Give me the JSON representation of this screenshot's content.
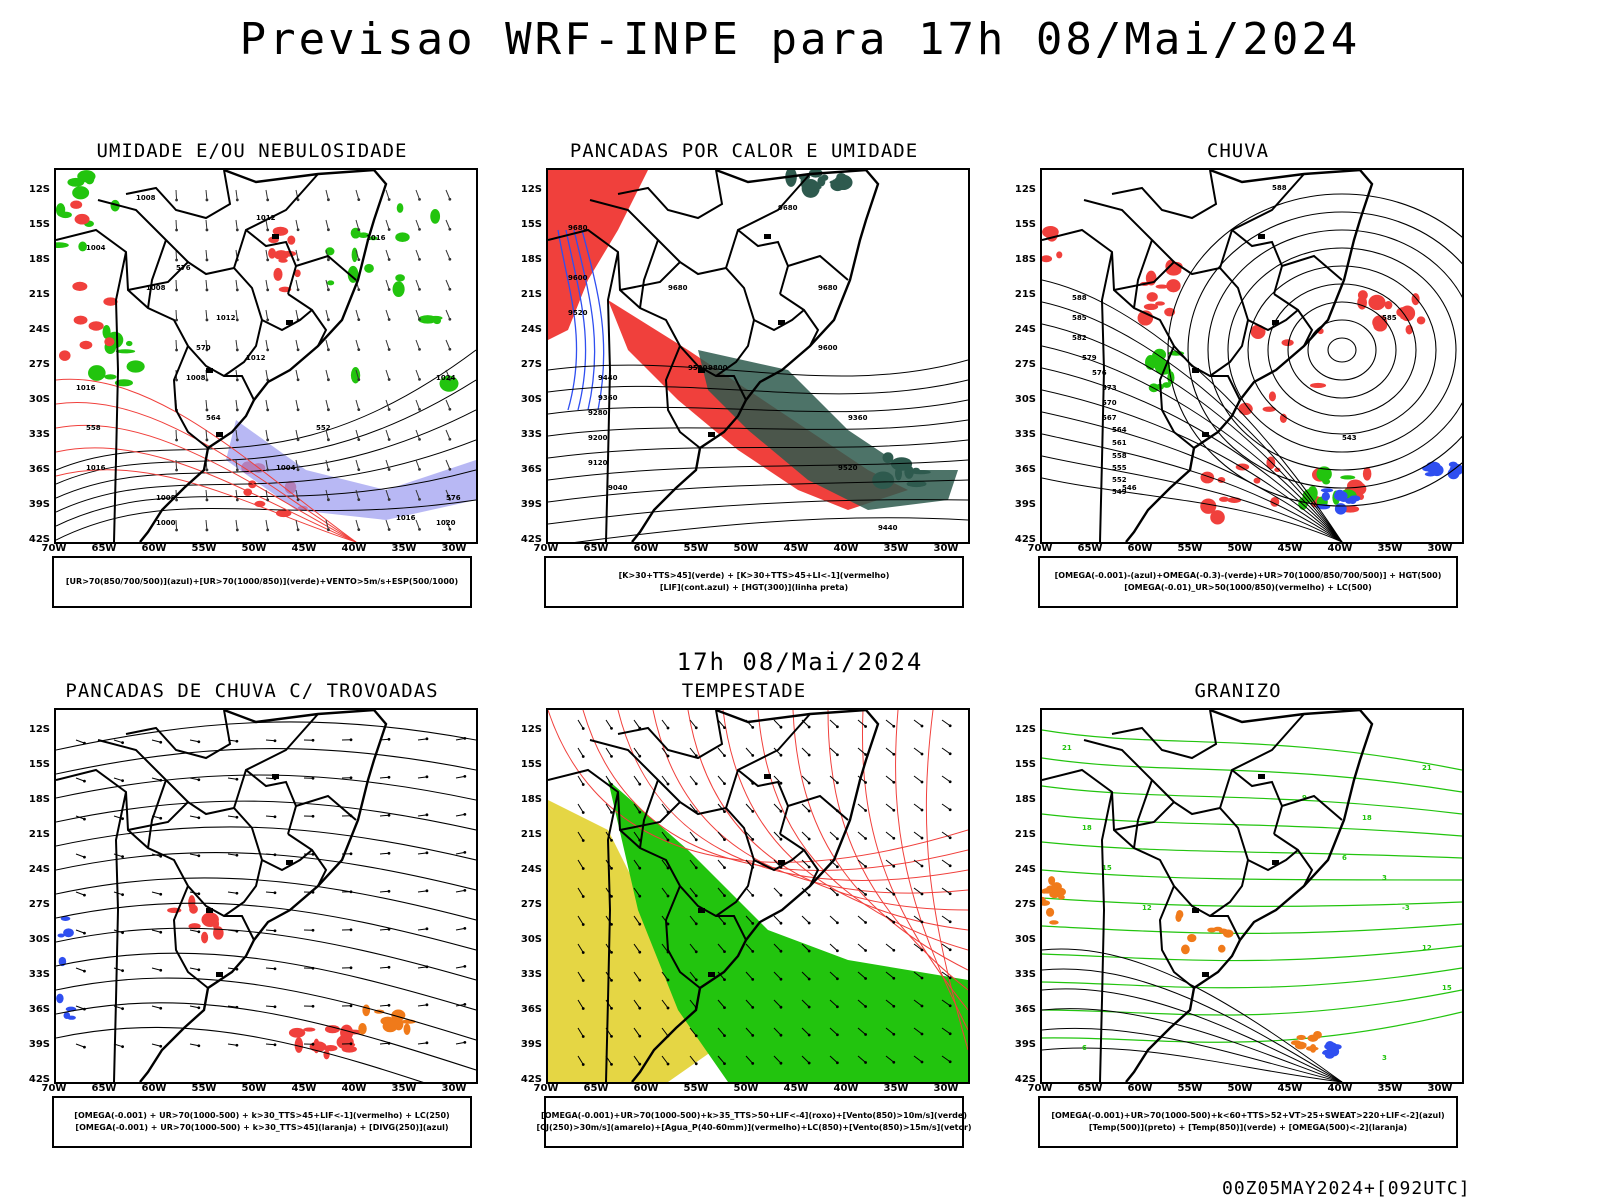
{
  "header": {
    "title": "Previsao WRF-INPE  para 17h 08/Mai/2024"
  },
  "middle": {
    "title": "17h 08/Mai/2024"
  },
  "footer": {
    "run": "00Z05MAY2024+[092UTC]"
  },
  "axes": {
    "lat_labels": [
      "12S",
      "15S",
      "18S",
      "21S",
      "24S",
      "27S",
      "30S",
      "33S",
      "36S",
      "39S",
      "42S"
    ],
    "lon_labels": [
      "70W",
      "65W",
      "60W",
      "55W",
      "50W",
      "45W",
      "40W",
      "35W",
      "30W"
    ]
  },
  "colors": {
    "red": "#f0403c",
    "green": "#22c40e",
    "blue": "#2f4ff0",
    "darkgreen": "#2e5a4e",
    "yellow": "#e4d43a",
    "orange": "#f07a1a",
    "lavender": "#9a9af0"
  },
  "panels": [
    {
      "title": "UMIDADE E/OU NEBULOSIDADE",
      "legend": [
        "[UR>70(850/700/500)](azul)+[UR>70(1000/850)](verde)+VENTO>5m/s+ESP(500/1000)"
      ]
    },
    {
      "title": "PANCADAS POR CALOR E UMIDADE",
      "legend": [
        "[K>30+TTS>45](verde) + [K>30+TTS>45+LI<-1](vermelho)",
        "[LIF](cont.azul) + [HGT(300)](linha preta)"
      ]
    },
    {
      "title": "CHUVA",
      "legend": [
        "[OMEGA(-0.001)-(azul)+OMEGA(-0.3)-(verde)+UR>70(1000/850/700/500)] + HGT(500)",
        "[OMEGA(-0.01)_UR>50(1000/850)(vermelho) + LC(500)"
      ]
    },
    {
      "title": "PANCADAS DE CHUVA C/ TROVOADAS",
      "legend": [
        "[OMEGA(-0.001) + UR>70(1000-500) + k>30_TTS>45+LIF<-1](vermelho) + LC(250)",
        "[OMEGA(-0.001) + UR>70(1000-500) + k>30_TTS>45](laranja) + [DIVG(250)](azul)"
      ]
    },
    {
      "title": "TEMPESTADE",
      "legend": [
        "[OMEGA(-0.001)+UR>70(1000-500)+k>35_TTS>50+LIF<-4](roxo)+[Vento(850)>10m/s](verde)",
        "[CJ(250)>30m/s](amarelo)+[Agua_P(40-60mm)](vermelho)+LC(850)+[Vento(850)>15m/s](vetor)"
      ]
    },
    {
      "title": "GRANIZO",
      "legend": [
        "[OMEGA(-0.001)+UR>70(1000-500)+k<60+TTS>52+VT>25+SWEAT>220+LIF<-2](azul)",
        "[Temp(500)](preto) + [Temp(850)](verde) + [OMEGA(500)<-2](laranja)"
      ]
    }
  ],
  "contour_labels": {
    "p0": [
      "1008",
      "1012",
      "1004",
      "1012",
      "1016",
      "1008",
      "1012",
      "1008",
      "1024",
      "1016",
      "1008",
      "1004",
      "1000",
      "1020",
      "1016",
      "1016",
      "576",
      "570",
      "564",
      "558",
      "552",
      "576"
    ],
    "p1": [
      "9680",
      "9600",
      "9520",
      "9440",
      "9360",
      "9280",
      "9200",
      "9120",
      "9040",
      "9680",
      "9680",
      "9600",
      "9520",
      "9440",
      "9360",
      "9680",
      "9520",
      "9800"
    ],
    "p2": [
      "588",
      "585",
      "582",
      "579",
      "576",
      "573",
      "570",
      "567",
      "564",
      "561",
      "558",
      "555",
      "552",
      "549",
      "546",
      "543",
      "588",
      "585"
    ],
    "p5": [
      "21",
      "18",
      "15",
      "12",
      "9",
      "6",
      "3",
      "-3",
      "12",
      "15",
      "18",
      "21",
      "3",
      "6"
    ]
  }
}
